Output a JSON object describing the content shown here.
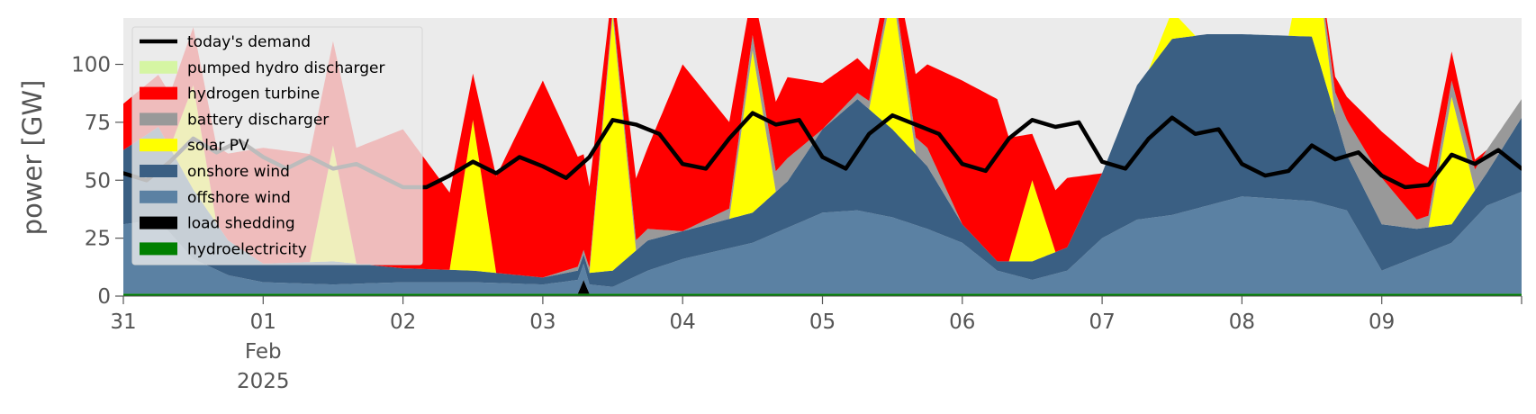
{
  "chart_data": {
    "type": "area",
    "title": "",
    "ylabel": "power [GW]",
    "ylim": [
      0,
      120
    ],
    "yticks": [
      0,
      25,
      50,
      75,
      100
    ],
    "xlim": [
      "2025-01-31",
      "2025-02-10"
    ],
    "xticks": [
      {
        "date": "2025-01-31",
        "label": [
          "31"
        ]
      },
      {
        "date": "2025-02-01",
        "label": [
          "01",
          "Feb",
          "2025"
        ]
      },
      {
        "date": "2025-02-02",
        "label": [
          "02"
        ]
      },
      {
        "date": "2025-02-03",
        "label": [
          "03"
        ]
      },
      {
        "date": "2025-02-04",
        "label": [
          "04"
        ]
      },
      {
        "date": "2025-02-05",
        "label": [
          "05"
        ]
      },
      {
        "date": "2025-02-06",
        "label": [
          "06"
        ]
      },
      {
        "date": "2025-02-07",
        "label": [
          "07"
        ]
      },
      {
        "date": "2025-02-08",
        "label": [
          "08"
        ]
      },
      {
        "date": "2025-02-09",
        "label": [
          "09"
        ]
      },
      {
        "date": "2025-02-10",
        "label": [
          ""
        ]
      }
    ],
    "grid": false,
    "legend_position": "upper-left",
    "background": "#ebebeb",
    "stacks": [
      {
        "name": "hydroelectricity",
        "color": "#008000",
        "points": [
          [
            "2025-01-31",
            1
          ],
          [
            "2025-02-02",
            1
          ],
          [
            "2025-02-04",
            1
          ],
          [
            "2025-02-06",
            1
          ],
          [
            "2025-02-08",
            1
          ],
          [
            "2025-02-10",
            1
          ]
        ]
      },
      {
        "name": "load shedding",
        "color": "#000000",
        "points": [
          [
            "2025-01-31",
            0
          ],
          [
            "2025-02-03 06:00",
            0
          ],
          [
            "2025-02-03 07:00",
            6
          ],
          [
            "2025-02-03 08:00",
            0
          ],
          [
            "2025-02-10",
            0
          ]
        ]
      },
      {
        "name": "offshore wind",
        "color": "#5b81a3",
        "points": [
          [
            "2025-01-31",
            30
          ],
          [
            "2025-01-31 06:00",
            32
          ],
          [
            "2025-01-31 12:00",
            15
          ],
          [
            "2025-01-31 18:00",
            8
          ],
          [
            "2025-02-01",
            5
          ],
          [
            "2025-02-01 12:00",
            4
          ],
          [
            "2025-02-02",
            5
          ],
          [
            "2025-02-02 12:00",
            5
          ],
          [
            "2025-02-03",
            4
          ],
          [
            "2025-02-03 06:00",
            6
          ],
          [
            "2025-02-03 07:00",
            7
          ],
          [
            "2025-02-03 08:00",
            4
          ],
          [
            "2025-02-03 12:00",
            3
          ],
          [
            "2025-02-03 18:00",
            10
          ],
          [
            "2025-02-04",
            15
          ],
          [
            "2025-02-04 12:00",
            22
          ],
          [
            "2025-02-05",
            35
          ],
          [
            "2025-02-05 06:00",
            36
          ],
          [
            "2025-02-05 12:00",
            33
          ],
          [
            "2025-02-05 18:00",
            28
          ],
          [
            "2025-02-06",
            22
          ],
          [
            "2025-02-06 06:00",
            10
          ],
          [
            "2025-02-06 12:00",
            6
          ],
          [
            "2025-02-06 18:00",
            10
          ],
          [
            "2025-02-07",
            24
          ],
          [
            "2025-02-07 06:00",
            32
          ],
          [
            "2025-02-07 12:00",
            34
          ],
          [
            "2025-02-07 18:00",
            38
          ],
          [
            "2025-02-08",
            42
          ],
          [
            "2025-02-08 12:00",
            40
          ],
          [
            "2025-02-08 18:00",
            36
          ],
          [
            "2025-02-09",
            10
          ],
          [
            "2025-02-09 06:00",
            16
          ],
          [
            "2025-02-09 12:00",
            22
          ],
          [
            "2025-02-09 18:00",
            38
          ],
          [
            "2025-02-10",
            44
          ]
        ]
      },
      {
        "name": "onshore wind",
        "color": "#3a5f83",
        "points": [
          [
            "2025-01-31",
            32
          ],
          [
            "2025-01-31 06:00",
            40
          ],
          [
            "2025-01-31 12:00",
            30
          ],
          [
            "2025-01-31 18:00",
            15
          ],
          [
            "2025-02-01",
            8
          ],
          [
            "2025-02-01 12:00",
            10
          ],
          [
            "2025-02-02",
            6
          ],
          [
            "2025-02-02 12:00",
            5
          ],
          [
            "2025-02-03",
            3
          ],
          [
            "2025-02-03 06:00",
            4
          ],
          [
            "2025-02-03 07:00",
            4
          ],
          [
            "2025-02-03 08:00",
            5
          ],
          [
            "2025-02-03 12:00",
            7
          ],
          [
            "2025-02-03 18:00",
            13
          ],
          [
            "2025-02-04",
            12
          ],
          [
            "2025-02-04 12:00",
            13
          ],
          [
            "2025-02-04 18:00",
            20
          ],
          [
            "2025-02-05",
            36
          ],
          [
            "2025-02-05 06:00",
            48
          ],
          [
            "2025-02-05 12:00",
            38
          ],
          [
            "2025-02-05 18:00",
            27
          ],
          [
            "2025-02-06",
            8
          ],
          [
            "2025-02-06 06:00",
            4
          ],
          [
            "2025-02-06 12:00",
            8
          ],
          [
            "2025-02-06 18:00",
            10
          ],
          [
            "2025-02-07",
            28
          ],
          [
            "2025-02-07 06:00",
            58
          ],
          [
            "2025-02-07 12:00",
            76
          ],
          [
            "2025-02-07 18:00",
            74
          ],
          [
            "2025-02-08",
            70
          ],
          [
            "2025-02-08 12:00",
            71
          ],
          [
            "2025-02-08 18:00",
            24
          ],
          [
            "2025-02-09",
            20
          ],
          [
            "2025-02-09 06:00",
            12
          ],
          [
            "2025-02-09 12:00",
            8
          ],
          [
            "2025-02-09 18:00",
            14
          ],
          [
            "2025-02-10",
            32
          ]
        ]
      },
      {
        "name": "solar PV",
        "color": "#ffff00",
        "points": [
          [
            "2025-01-31",
            0
          ],
          [
            "2025-01-31 08:00",
            0
          ],
          [
            "2025-01-31 12:00",
            45
          ],
          [
            "2025-01-31 16:00",
            0
          ],
          [
            "2025-02-01 08:00",
            0
          ],
          [
            "2025-02-01 12:00",
            50
          ],
          [
            "2025-02-01 16:00",
            0
          ],
          [
            "2025-02-02 08:00",
            0
          ],
          [
            "2025-02-02 12:00",
            65
          ],
          [
            "2025-02-02 16:00",
            0
          ],
          [
            "2025-02-03 08:00",
            0
          ],
          [
            "2025-02-03 12:00",
            110
          ],
          [
            "2025-02-03 16:00",
            0
          ],
          [
            "2025-02-04 08:00",
            0
          ],
          [
            "2025-02-04 12:00",
            70
          ],
          [
            "2025-02-04 16:00",
            0
          ],
          [
            "2025-02-05 08:00",
            0
          ],
          [
            "2025-02-05 12:00",
            60
          ],
          [
            "2025-02-05 16:00",
            0
          ],
          [
            "2025-02-06 08:00",
            0
          ],
          [
            "2025-02-06 12:00",
            35
          ],
          [
            "2025-02-06 16:00",
            0
          ],
          [
            "2025-02-07 08:00",
            0
          ],
          [
            "2025-02-07 12:00",
            12
          ],
          [
            "2025-02-07 16:00",
            0
          ],
          [
            "2025-02-08 08:00",
            0
          ],
          [
            "2025-02-08 12:00",
            52
          ],
          [
            "2025-02-08 16:00",
            0
          ],
          [
            "2025-02-09 08:00",
            0
          ],
          [
            "2025-02-09 12:00",
            55
          ],
          [
            "2025-02-09 16:00",
            0
          ],
          [
            "2025-02-10",
            0
          ]
        ]
      },
      {
        "name": "battery discharger",
        "color": "#999999",
        "points": [
          [
            "2025-01-31",
            0
          ],
          [
            "2025-02-03",
            0
          ],
          [
            "2025-02-03 18:00",
            5
          ],
          [
            "2025-02-04",
            0
          ],
          [
            "2025-02-04 18:00",
            10
          ],
          [
            "2025-02-05",
            0
          ],
          [
            "2025-02-05 18:00",
            8
          ],
          [
            "2025-02-06",
            0
          ],
          [
            "2025-02-06 18:00",
            0
          ],
          [
            "2025-02-08 12:00",
            0
          ],
          [
            "2025-02-08 18:00",
            15
          ],
          [
            "2025-02-09",
            20
          ],
          [
            "2025-02-09 06:00",
            4
          ],
          [
            "2025-02-09 18:00",
            10
          ],
          [
            "2025-02-10",
            8
          ]
        ]
      },
      {
        "name": "hydrogen turbine",
        "color": "#ff0000",
        "points": [
          [
            "2025-01-31",
            20
          ],
          [
            "2025-01-31 12:00",
            25
          ],
          [
            "2025-02-01",
            50
          ],
          [
            "2025-02-01 12:00",
            45
          ],
          [
            "2025-02-02",
            60
          ],
          [
            "2025-02-02 12:00",
            20
          ],
          [
            "2025-02-03",
            85
          ],
          [
            "2025-02-03 12:00",
            10
          ],
          [
            "2025-02-03 18:00",
            35
          ],
          [
            "2025-02-04",
            72
          ],
          [
            "2025-02-04 12:00",
            20
          ],
          [
            "2025-02-04 18:00",
            35
          ],
          [
            "2025-02-05",
            20
          ],
          [
            "2025-02-05 12:00",
            10
          ],
          [
            "2025-02-06",
            62
          ],
          [
            "2025-02-06 06:00",
            70
          ],
          [
            "2025-02-06 12:00",
            20
          ],
          [
            "2025-02-06 18:00",
            30
          ],
          [
            "2025-02-07",
            0
          ],
          [
            "2025-02-08 12:00",
            0
          ],
          [
            "2025-02-09",
            20
          ],
          [
            "2025-02-09 06:00",
            25
          ],
          [
            "2025-02-09 18:00",
            0
          ],
          [
            "2025-02-10",
            0
          ]
        ]
      },
      {
        "name": "pumped hydro discharger",
        "color": "#d5f5a3",
        "points": [
          [
            "2025-01-31",
            0
          ],
          [
            "2025-02-10",
            0
          ]
        ]
      }
    ],
    "series": [
      {
        "name": "today's demand",
        "color": "#000000",
        "points": [
          [
            "2025-01-31",
            53
          ],
          [
            "2025-01-31 04:00",
            50
          ],
          [
            "2025-01-31 08:00",
            58
          ],
          [
            "2025-01-31 12:00",
            68
          ],
          [
            "2025-01-31 16:00",
            62
          ],
          [
            "2025-01-31 20:00",
            67
          ],
          [
            "2025-02-01",
            60
          ],
          [
            "2025-02-01 04:00",
            55
          ],
          [
            "2025-02-01 08:00",
            60
          ],
          [
            "2025-02-01 12:00",
            55
          ],
          [
            "2025-02-01 16:00",
            57
          ],
          [
            "2025-02-01 20:00",
            52
          ],
          [
            "2025-02-02",
            47
          ],
          [
            "2025-02-02 04:00",
            47
          ],
          [
            "2025-02-02 08:00",
            52
          ],
          [
            "2025-02-02 12:00",
            58
          ],
          [
            "2025-02-02 16:00",
            53
          ],
          [
            "2025-02-02 20:00",
            60
          ],
          [
            "2025-02-03",
            56
          ],
          [
            "2025-02-03 04:00",
            51
          ],
          [
            "2025-02-03 08:00",
            60
          ],
          [
            "2025-02-03 12:00",
            76
          ],
          [
            "2025-02-03 16:00",
            74
          ],
          [
            "2025-02-03 20:00",
            70
          ],
          [
            "2025-02-04",
            57
          ],
          [
            "2025-02-04 04:00",
            55
          ],
          [
            "2025-02-04 08:00",
            68
          ],
          [
            "2025-02-04 12:00",
            79
          ],
          [
            "2025-02-04 16:00",
            74
          ],
          [
            "2025-02-04 20:00",
            76
          ],
          [
            "2025-02-05",
            60
          ],
          [
            "2025-02-05 04:00",
            55
          ],
          [
            "2025-02-05 08:00",
            70
          ],
          [
            "2025-02-05 12:00",
            78
          ],
          [
            "2025-02-05 16:00",
            74
          ],
          [
            "2025-02-05 20:00",
            70
          ],
          [
            "2025-02-06",
            57
          ],
          [
            "2025-02-06 04:00",
            54
          ],
          [
            "2025-02-06 08:00",
            68
          ],
          [
            "2025-02-06 12:00",
            76
          ],
          [
            "2025-02-06 16:00",
            73
          ],
          [
            "2025-02-06 20:00",
            75
          ],
          [
            "2025-02-07",
            58
          ],
          [
            "2025-02-07 04:00",
            55
          ],
          [
            "2025-02-07 08:00",
            68
          ],
          [
            "2025-02-07 12:00",
            77
          ],
          [
            "2025-02-07 16:00",
            70
          ],
          [
            "2025-02-07 20:00",
            72
          ],
          [
            "2025-02-08",
            57
          ],
          [
            "2025-02-08 04:00",
            52
          ],
          [
            "2025-02-08 08:00",
            54
          ],
          [
            "2025-02-08 12:00",
            65
          ],
          [
            "2025-02-08 16:00",
            59
          ],
          [
            "2025-02-08 20:00",
            62
          ],
          [
            "2025-02-09",
            52
          ],
          [
            "2025-02-09 04:00",
            47
          ],
          [
            "2025-02-09 08:00",
            48
          ],
          [
            "2025-02-09 12:00",
            61
          ],
          [
            "2025-02-09 16:00",
            57
          ],
          [
            "2025-02-09 20:00",
            63
          ],
          [
            "2025-02-10",
            55
          ]
        ]
      }
    ],
    "legend": [
      {
        "label": "today's demand",
        "color": "#000000",
        "kind": "line"
      },
      {
        "label": "pumped hydro discharger",
        "color": "#d5f5a3",
        "kind": "patch"
      },
      {
        "label": "hydrogen turbine",
        "color": "#ff0000",
        "kind": "patch"
      },
      {
        "label": "battery discharger",
        "color": "#999999",
        "kind": "patch"
      },
      {
        "label": "solar PV",
        "color": "#ffff00",
        "kind": "patch"
      },
      {
        "label": "onshore wind",
        "color": "#3a5f83",
        "kind": "patch"
      },
      {
        "label": "offshore wind",
        "color": "#5b81a3",
        "kind": "patch"
      },
      {
        "label": "load shedding",
        "color": "#000000",
        "kind": "patch"
      },
      {
        "label": "hydroelectricity",
        "color": "#008000",
        "kind": "patch"
      }
    ]
  }
}
